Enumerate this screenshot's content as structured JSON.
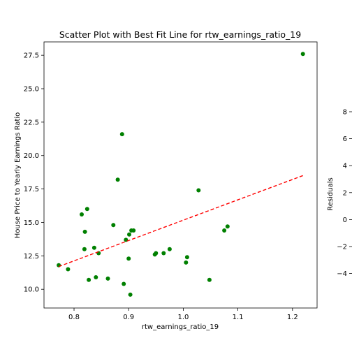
{
  "chart_data": [
    {
      "type": "scatter",
      "title": "Scatter Plot with Best Fit Line for rtw_earnings_ratio_19",
      "xlabel": "rtw_earnings_ratio_19",
      "ylabel": "House Price to Yearly Earnings Ratio",
      "xlim": [
        0.745,
        1.245
      ],
      "ylim": [
        8.6,
        28.5
      ],
      "x_ticks": [
        "0.8",
        "0.9",
        "1.0",
        "1.1",
        "1.2"
      ],
      "y_ticks": [
        "10.0",
        "12.5",
        "15.0",
        "17.5",
        "20.0",
        "22.5",
        "25.0",
        "27.5"
      ],
      "grid": false,
      "point_color": "#008000",
      "fit_color": "#ff0000",
      "points": [
        {
          "x": 0.772,
          "y": 11.8
        },
        {
          "x": 0.789,
          "y": 11.5
        },
        {
          "x": 0.814,
          "y": 15.6
        },
        {
          "x": 0.819,
          "y": 13.0
        },
        {
          "x": 0.82,
          "y": 14.3
        },
        {
          "x": 0.824,
          "y": 16.0
        },
        {
          "x": 0.827,
          "y": 10.7
        },
        {
          "x": 0.837,
          "y": 13.1
        },
        {
          "x": 0.84,
          "y": 10.9
        },
        {
          "x": 0.845,
          "y": 12.7
        },
        {
          "x": 0.862,
          "y": 10.8
        },
        {
          "x": 0.872,
          "y": 14.8
        },
        {
          "x": 0.88,
          "y": 18.2
        },
        {
          "x": 0.888,
          "y": 21.6
        },
        {
          "x": 0.891,
          "y": 10.4
        },
        {
          "x": 0.895,
          "y": 13.7
        },
        {
          "x": 0.9,
          "y": 12.3
        },
        {
          "x": 0.901,
          "y": 14.1
        },
        {
          "x": 0.903,
          "y": 9.6
        },
        {
          "x": 0.905,
          "y": 14.4
        },
        {
          "x": 0.909,
          "y": 14.4
        },
        {
          "x": 0.948,
          "y": 12.6
        },
        {
          "x": 0.95,
          "y": 12.7
        },
        {
          "x": 0.964,
          "y": 12.7
        },
        {
          "x": 0.975,
          "y": 13.0
        },
        {
          "x": 1.005,
          "y": 12.0
        },
        {
          "x": 1.007,
          "y": 12.4
        },
        {
          "x": 1.028,
          "y": 17.4
        },
        {
          "x": 1.048,
          "y": 10.7
        },
        {
          "x": 1.075,
          "y": 14.4
        },
        {
          "x": 1.081,
          "y": 14.7
        },
        {
          "x": 1.219,
          "y": 27.6
        }
      ],
      "fit_line": {
        "x": [
          0.772,
          1.219
        ],
        "y": [
          11.7,
          18.5
        ]
      }
    },
    {
      "type": "scatter",
      "ylabel": "Residuals",
      "y_ticks": [
        "8",
        "6",
        "4",
        "2",
        "0",
        "−2",
        "−4"
      ]
    }
  ]
}
